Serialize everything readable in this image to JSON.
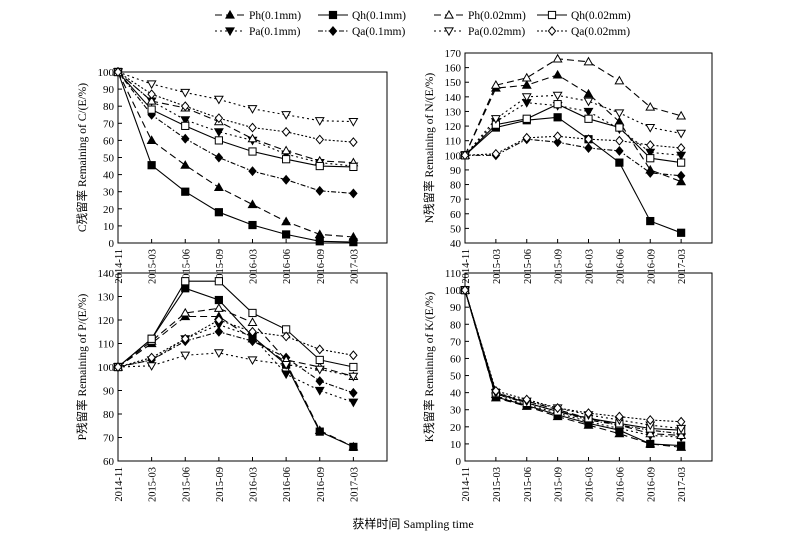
{
  "legend": {
    "row1": [
      "Ph(0.1mm)",
      "Qh(0.1mm)",
      "Ph(0.02mm)",
      "Qh(0.02mm)"
    ],
    "row2": [
      "Pa(0.1mm)",
      "Qa(0.1mm)",
      "Pa(0.02mm)",
      "Qa(0.02mm)"
    ]
  },
  "xlabel": "获样时间 Sampling time",
  "chart_data": [
    {
      "type": "line",
      "panel": "top-left",
      "ylabel": "C残留率 Remaining of C/(E/%)",
      "categories": [
        "2014-11",
        "2015-03",
        "2015-06",
        "2015-09",
        "2016-03",
        "2016-06",
        "2016-09",
        "2017-03"
      ],
      "ylim": [
        0,
        100
      ],
      "yticks": [
        0,
        10,
        20,
        30,
        40,
        50,
        60,
        70,
        80,
        90,
        100
      ],
      "grid": false,
      "series": [
        {
          "name": "Ph(0.1mm)",
          "values": [
            100,
            60,
            45.5,
            32.5,
            22.5,
            12.5,
            5,
            3.5
          ]
        },
        {
          "name": "Qh(0.1mm)",
          "values": [
            100,
            45.5,
            30,
            18,
            10.5,
            5,
            1,
            0.5
          ]
        },
        {
          "name": "Pa(0.1mm)",
          "values": [
            100,
            83,
            72,
            65,
            60,
            52,
            47,
            45
          ]
        },
        {
          "name": "Qa(0.1mm)",
          "values": [
            100,
            75,
            61,
            50,
            42,
            37,
            30.5,
            29
          ]
        },
        {
          "name": "Ph(0.02mm)",
          "values": [
            100,
            83,
            79,
            71,
            61,
            54,
            48,
            47
          ]
        },
        {
          "name": "Qh(0.02mm)",
          "values": [
            100,
            78,
            68.5,
            60,
            53.5,
            49,
            45,
            44.5
          ]
        },
        {
          "name": "Pa(0.02mm)",
          "values": [
            100,
            93,
            88,
            84,
            78.5,
            75,
            71.5,
            71
          ]
        },
        {
          "name": "Qa(0.02mm)",
          "values": [
            100,
            87,
            80,
            73,
            67.5,
            65,
            60.5,
            59
          ]
        }
      ]
    },
    {
      "type": "line",
      "panel": "top-right",
      "ylabel": "N残留率 Remaining of N/(E/%)",
      "categories": [
        "2014-11",
        "2015-03",
        "2015-06",
        "2015-09",
        "2016-03",
        "2016-06",
        "2016-09",
        "2017-03"
      ],
      "ylim": [
        40,
        170
      ],
      "yticks": [
        40,
        50,
        60,
        70,
        80,
        90,
        100,
        110,
        120,
        130,
        140,
        150,
        160,
        170
      ],
      "grid": false,
      "series": [
        {
          "name": "Ph(0.1mm)",
          "values": [
            100,
            146,
            148,
            155,
            142,
            123,
            90,
            82
          ]
        },
        {
          "name": "Qh(0.1mm)",
          "values": [
            100,
            119,
            124,
            126,
            111,
            95,
            55,
            47
          ]
        },
        {
          "name": "Pa(0.1mm)",
          "values": [
            100,
            123,
            136,
            134,
            130,
            118,
            102,
            100
          ]
        },
        {
          "name": "Qa(0.1mm)",
          "values": [
            100,
            100,
            111,
            109,
            105,
            103,
            88,
            86
          ]
        },
        {
          "name": "Ph(0.02mm)",
          "values": [
            100,
            148,
            153,
            166,
            164,
            151,
            133,
            127
          ]
        },
        {
          "name": "Qh(0.02mm)",
          "values": [
            100,
            121,
            125,
            135,
            125,
            119,
            98,
            95
          ]
        },
        {
          "name": "Pa(0.02mm)",
          "values": [
            100,
            125,
            140,
            141,
            137,
            129,
            119,
            115
          ]
        },
        {
          "name": "Qa(0.02mm)",
          "values": [
            100,
            101,
            112,
            113,
            111,
            110,
            107,
            105
          ]
        }
      ]
    },
    {
      "type": "line",
      "panel": "bottom-left",
      "ylabel": "P残留率 Remaining of P/(E/%)",
      "categories": [
        "2014-11",
        "2015-03",
        "2015-06",
        "2015-09",
        "2016-03",
        "2016-06",
        "2016-09",
        "2017-03"
      ],
      "ylim": [
        60,
        140
      ],
      "yticks": [
        60,
        70,
        80,
        90,
        100,
        110,
        120,
        130,
        140
      ],
      "grid": false,
      "series": [
        {
          "name": "Ph(0.1mm)",
          "values": [
            100,
            110,
            121.5,
            121.5,
            112,
            102,
            73,
            66
          ]
        },
        {
          "name": "Qh(0.1mm)",
          "values": [
            100,
            112,
            133.5,
            128.5,
            113,
            101,
            72.5,
            66
          ]
        },
        {
          "name": "Pa(0.1mm)",
          "values": [
            100,
            103,
            112,
            118,
            113,
            97,
            90,
            85
          ]
        },
        {
          "name": "Qa(0.1mm)",
          "values": [
            100,
            103,
            111,
            115,
            111,
            104,
            94,
            89
          ]
        },
        {
          "name": "Ph(0.02mm)",
          "values": [
            100,
            111,
            123,
            125,
            119,
            103,
            100,
            96
          ]
        },
        {
          "name": "Qh(0.02mm)",
          "values": [
            100,
            112,
            136.5,
            136.5,
            123,
            116,
            103,
            100
          ]
        },
        {
          "name": "Pa(0.02mm)",
          "values": [
            100,
            100.5,
            105,
            106,
            103,
            101,
            99,
            96
          ]
        },
        {
          "name": "Qa(0.02mm)",
          "values": [
            100,
            104,
            112,
            120,
            115,
            113,
            107.5,
            105
          ]
        }
      ]
    },
    {
      "type": "line",
      "panel": "bottom-right",
      "ylabel": "K残留率 Remaining of K/(E/%)",
      "categories": [
        "2014-11",
        "2015-03",
        "2015-06",
        "2015-09",
        "2016-03",
        "2016-06",
        "2016-09",
        "2017-03"
      ],
      "ylim": [
        0,
        110
      ],
      "yticks": [
        0,
        10,
        20,
        30,
        40,
        50,
        60,
        70,
        80,
        90,
        100,
        110
      ],
      "grid": false,
      "series": [
        {
          "name": "Ph(0.1mm)",
          "values": [
            100,
            37,
            32,
            26,
            21,
            16,
            10,
            8
          ]
        },
        {
          "name": "Qh(0.1mm)",
          "values": [
            100,
            37.5,
            32.5,
            27,
            22,
            18,
            10,
            9
          ]
        },
        {
          "name": "Pa(0.1mm)",
          "values": [
            100,
            38,
            33,
            28,
            23,
            19,
            15,
            14
          ]
        },
        {
          "name": "Qa(0.1mm)",
          "values": [
            100,
            39,
            34,
            29,
            24,
            21,
            18,
            16
          ]
        },
        {
          "name": "Ph(0.02mm)",
          "values": [
            100,
            39,
            35,
            30,
            25,
            21,
            16,
            15
          ]
        },
        {
          "name": "Qh(0.02mm)",
          "values": [
            100,
            40,
            34,
            29,
            25,
            22,
            19,
            18
          ]
        },
        {
          "name": "Pa(0.02mm)",
          "values": [
            100,
            40,
            35,
            31,
            27,
            24,
            21,
            19
          ]
        },
        {
          "name": "Qa(0.02mm)",
          "values": [
            100,
            41,
            36,
            31,
            28,
            26,
            24,
            23
          ]
        }
      ]
    }
  ]
}
